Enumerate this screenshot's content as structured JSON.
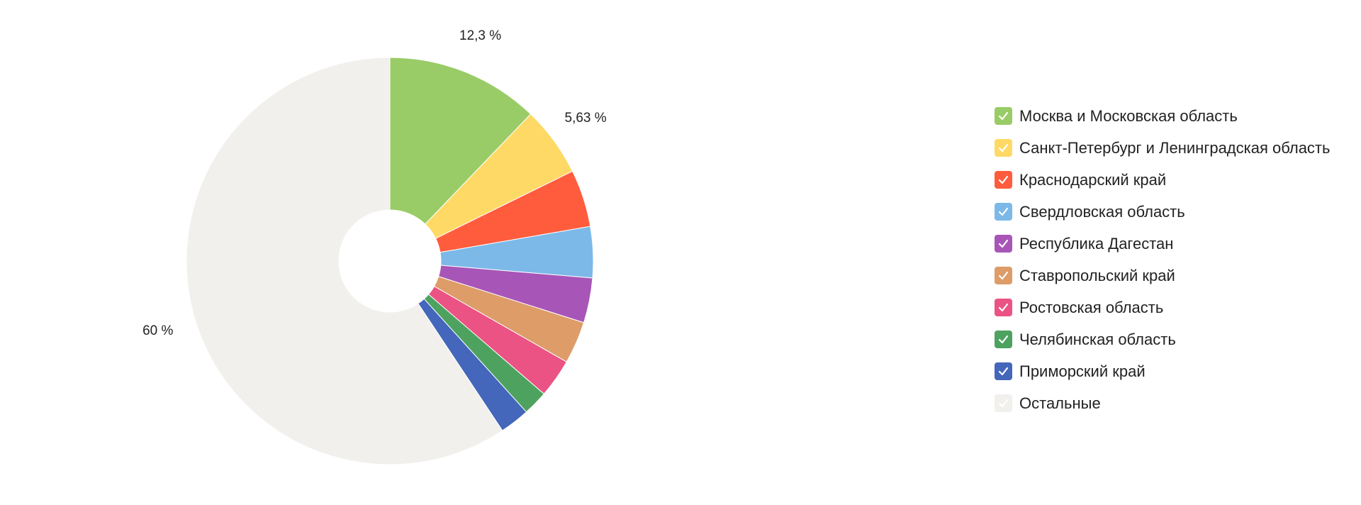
{
  "chart_data": {
    "type": "pie",
    "style": "donut",
    "slices": [
      {
        "label": "Москва и Московская область",
        "value": 12.3,
        "color": "#99cc66",
        "data_label": "12,3 %"
      },
      {
        "label": "Санкт-Петербург и Ленинградская область",
        "value": 5.63,
        "color": "#ffd966",
        "data_label": "5,63 %"
      },
      {
        "label": "Краснодарский край",
        "value": 4.6,
        "color": "#ff5c3d",
        "data_label": ""
      },
      {
        "label": "Свердловская область",
        "value": 4.1,
        "color": "#7cb9e8",
        "data_label": ""
      },
      {
        "label": "Республика Дагестан",
        "value": 3.6,
        "color": "#a855b8",
        "data_label": ""
      },
      {
        "label": "Ставропольский край",
        "value": 3.4,
        "color": "#dd9c68",
        "data_label": ""
      },
      {
        "label": "Ростовская область",
        "value": 3.1,
        "color": "#ea5383",
        "data_label": ""
      },
      {
        "label": "Челябинская область",
        "value": 2.0,
        "color": "#4ea25f",
        "data_label": ""
      },
      {
        "label": "Приморский край",
        "value": 2.4,
        "color": "#4466bb",
        "data_label": ""
      },
      {
        "label": "Остальные",
        "value": 60,
        "color": "#f1f0ed",
        "data_label": "60 %"
      }
    ],
    "legend_position": "right",
    "all_series_checked": true
  }
}
